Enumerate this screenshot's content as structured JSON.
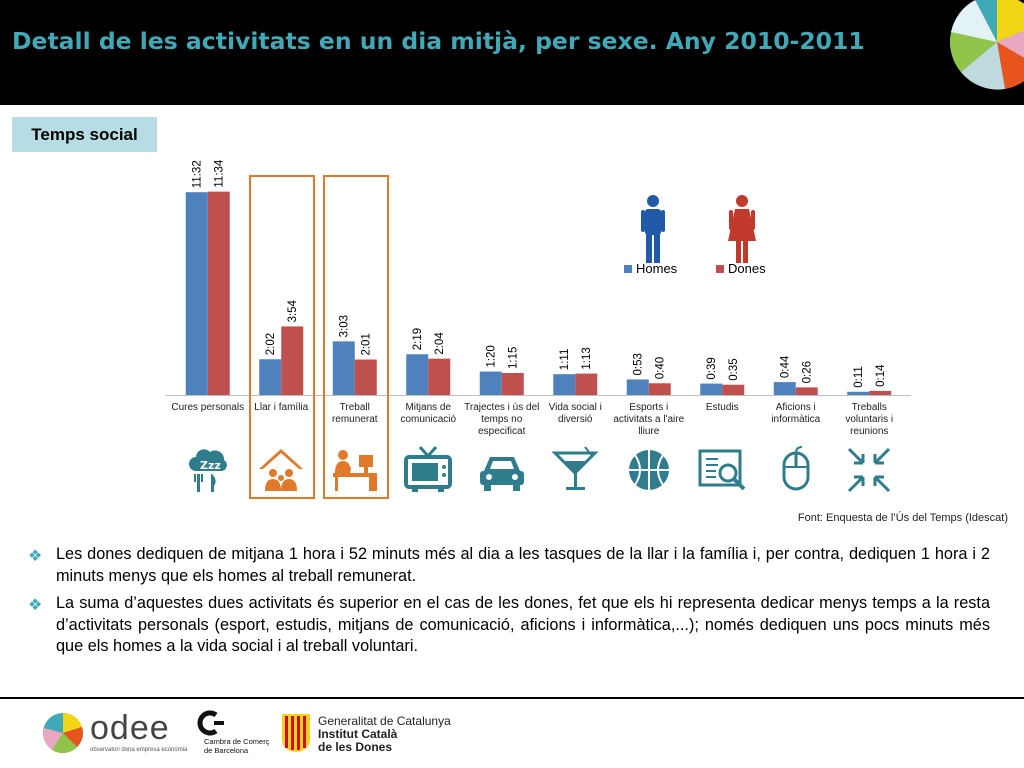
{
  "header": {
    "title": "Detall de les activitats en un dia mitjà, per sexe. Any 2010-2011"
  },
  "badge": {
    "label": "Temps social"
  },
  "chart_data": {
    "type": "bar",
    "categories": [
      "Cures personals",
      "Llar i família",
      "Treball remunerat",
      "Mitjans de comunicació",
      "Trajectes i ús del temps no especificat",
      "Vida social i diversió",
      "Esports i activitats a l'aire lliure",
      "Estudis",
      "Aficions i informàtica",
      "Treballs voluntaris i reunions"
    ],
    "series": [
      {
        "name": "Homes",
        "color": "#4f81bd",
        "values": [
          692,
          122,
          183,
          139,
          80,
          71,
          53,
          39,
          44,
          11
        ],
        "labels": [
          "11:32",
          "2:02",
          "3:03",
          "2:19",
          "1:20",
          "1:11",
          "0:53",
          "0:39",
          "0:44",
          "0:11"
        ]
      },
      {
        "name": "Dones",
        "color": "#c0504d",
        "values": [
          694,
          234,
          121,
          124,
          75,
          73,
          40,
          35,
          26,
          14
        ],
        "labels": [
          "11:34",
          "3:54",
          "2:01",
          "2:04",
          "1:15",
          "1:13",
          "0:40",
          "0:35",
          "0:26",
          "0:14"
        ]
      }
    ],
    "ylim": [
      0,
      720
    ],
    "legend_position": "top-right",
    "highlighted_categories": [
      "Llar i família",
      "Treball remunerat"
    ],
    "highlight_color": "#e07a2a",
    "icon_color": "#2f7d8c"
  },
  "icons": [
    "sleep-eat-icon",
    "home-family-icon",
    "office-work-icon",
    "tv-icon",
    "car-icon",
    "cocktail-icon",
    "basketball-icon",
    "reading-icon",
    "mouse-icon",
    "arrows-converge-icon"
  ],
  "source": "Font: Enquesta de l’Ús del Temps (Idescat)",
  "bullets": [
    "Les dones dediquen de mitjana 1 hora i 52 minuts més al dia a les tasques de la llar i la família i, per contra, dediquen 1 hora i 2 minuts menys que els homes al treball remunerat.",
    "La suma d’aquestes dues activitats és superior en el cas de les dones, fet que els hi representa dedicar menys temps a la resta d’activitats personals (esport, estudis, mitjans de comunicació, aficions i informàtica,...); només dediquen uns pocs minuts més que els homes a la vida social i al treball voluntari."
  ],
  "footer": {
    "odee_name": "odee",
    "odee_tagline": "observatori dona empresa economia",
    "cambra_line1": "Cambra de Comerç",
    "cambra_line2": "de Barcelona",
    "gencat_line1": "Generalitat de Catalunya",
    "gencat_line2": "Institut Català",
    "gencat_line3": "de les Dones"
  }
}
